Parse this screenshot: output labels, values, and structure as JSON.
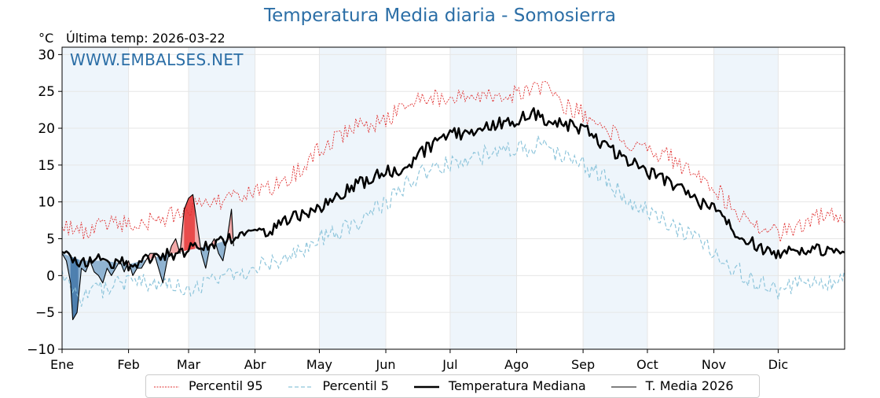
{
  "header": {
    "title": "Temperatura Media diaria - Somosierra",
    "unit": "°C",
    "last_temp": "Última temp: 2026-03-22",
    "watermark": "WWW.EMBALSES.NET"
  },
  "colors": {
    "p95": "#e03030",
    "p5": "#8ec5db",
    "median": "#000000",
    "year": "#000000",
    "fill_above": "#f4a9a9",
    "fill_above_strong": "#e84a4a",
    "fill_below": "#8fb3d1",
    "fill_below_strong": "#4d7fae",
    "month_band": "#eef5fb"
  },
  "legend": [
    {
      "key": "p95",
      "label": "Percentil 95"
    },
    {
      "key": "p5",
      "label": "Percentil 5"
    },
    {
      "key": "median",
      "label": "Temperatura Mediana"
    },
    {
      "key": "year",
      "label": "T. Media 2026"
    }
  ],
  "chart_data": {
    "type": "line",
    "title": "Temperatura Media diaria - Somosierra",
    "ylabel": "°C",
    "xlim": [
      1,
      366
    ],
    "ylim": [
      -10,
      31
    ],
    "yticks": [
      -10,
      -5,
      0,
      5,
      10,
      15,
      20,
      25,
      30
    ],
    "ytick_labels": [
      "−10",
      "−5",
      "0",
      "5",
      "10",
      "15",
      "20",
      "25",
      "30"
    ],
    "months": [
      {
        "label": "Ene",
        "day": 1
      },
      {
        "label": "Feb",
        "day": 32
      },
      {
        "label": "Mar",
        "day": 60
      },
      {
        "label": "Abr",
        "day": 91
      },
      {
        "label": "May",
        "day": 121
      },
      {
        "label": "Jun",
        "day": 152
      },
      {
        "label": "Jul",
        "day": 182
      },
      {
        "label": "Ago",
        "day": 213
      },
      {
        "label": "Sep",
        "day": 244
      },
      {
        "label": "Oct",
        "day": 274
      },
      {
        "label": "Nov",
        "day": 305
      },
      {
        "label": "Dic",
        "day": 335
      }
    ],
    "grid": true,
    "legend_position": "bottom",
    "series": [
      {
        "name": "Percentil 95",
        "key": "p95",
        "x": [
          1,
          10,
          20,
          32,
          45,
          60,
          70,
          80,
          91,
          100,
          110,
          121,
          131,
          140,
          152,
          160,
          170,
          182,
          190,
          200,
          213,
          220,
          226,
          235,
          244,
          255,
          265,
          274,
          285,
          295,
          305,
          315,
          325,
          335,
          345,
          355,
          366
        ],
        "y": [
          7,
          6,
          7,
          7,
          7.5,
          9,
          10,
          10.5,
          11,
          12,
          14,
          17,
          19,
          20.5,
          21,
          23,
          24,
          24,
          24.5,
          24.5,
          24.5,
          25,
          25.5,
          23,
          22,
          20,
          18,
          17,
          16,
          14,
          12,
          9,
          7,
          5.5,
          7,
          8,
          8.5
        ]
      },
      {
        "name": "Percentil 5",
        "key": "p5",
        "x": [
          1,
          10,
          20,
          32,
          45,
          60,
          70,
          80,
          91,
          100,
          110,
          121,
          131,
          140,
          152,
          160,
          170,
          182,
          190,
          200,
          213,
          220,
          226,
          235,
          244,
          255,
          265,
          274,
          285,
          295,
          305,
          315,
          325,
          335,
          345,
          355,
          366
        ],
        "y": [
          0,
          -3,
          -2,
          -1,
          -1,
          -2,
          -1,
          0,
          1,
          2,
          3,
          5,
          6,
          7,
          10,
          12,
          14,
          15.5,
          16,
          16.5,
          17,
          17.5,
          18,
          16,
          15,
          13,
          10,
          9,
          7,
          5,
          3,
          1,
          -1,
          -2,
          -1,
          -1,
          -0.5
        ]
      },
      {
        "name": "Temperatura Mediana",
        "key": "median",
        "x": [
          1,
          10,
          20,
          32,
          45,
          60,
          70,
          80,
          91,
          100,
          110,
          121,
          131,
          140,
          152,
          160,
          170,
          182,
          190,
          200,
          213,
          220,
          226,
          235,
          244,
          255,
          265,
          274,
          285,
          295,
          305,
          315,
          325,
          335,
          345,
          355,
          366
        ],
        "y": [
          3,
          2,
          2,
          1.5,
          2.5,
          3.5,
          4,
          5,
          5.5,
          6.5,
          8,
          9,
          11,
          12.5,
          14,
          14.5,
          17,
          19,
          19.5,
          20.5,
          21,
          22,
          21,
          20.5,
          20,
          17.5,
          15.5,
          14,
          12.5,
          10.5,
          9,
          6,
          4,
          3,
          3.5,
          3.5,
          3
        ]
      },
      {
        "name": "T. Media 2026",
        "key": "year",
        "x": [
          1,
          3,
          5,
          6,
          8,
          10,
          12,
          14,
          16,
          18,
          20,
          22,
          24,
          26,
          28,
          30,
          32,
          34,
          36,
          38,
          40,
          42,
          44,
          46,
          48,
          50,
          52,
          54,
          56,
          58,
          60,
          62,
          64,
          66,
          68,
          70,
          72,
          74,
          76,
          78,
          80,
          81
        ],
        "y": [
          3,
          2,
          -1,
          -6,
          -5,
          1,
          0.5,
          2,
          0.5,
          0,
          -1,
          1,
          0,
          1,
          2,
          0.5,
          2,
          0,
          1,
          1,
          2,
          3,
          3,
          1,
          -1,
          2,
          4,
          5,
          3,
          9,
          10.5,
          11,
          7,
          3,
          1,
          4,
          5,
          3,
          2,
          5,
          9,
          4
        ]
      }
    ]
  }
}
